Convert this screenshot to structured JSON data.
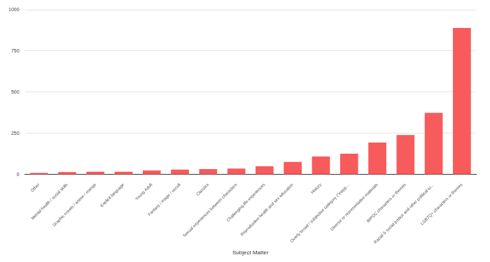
{
  "chart_data": {
    "type": "bar",
    "x_label": "Subject Matter",
    "categories": [
      "Other",
      "Mental health / social skills",
      "Graphic novels / anime / manga",
      "Explicit language",
      "Young Adult",
      "Fantasy / magic / occult",
      "Classics",
      "Sexual experiences between characters",
      "Challenging life experiences",
      "Reproductive health and sex education",
      "History",
      "Overly broad / subjective category (\"inapp…",
      "Diverse or representative materials",
      "BIPOC characters or themes",
      "Racial & social justice and other political to…",
      "LGBTQ+ characters or themes"
    ],
    "values": [
      10,
      15,
      18,
      18,
      25,
      30,
      33,
      37,
      50,
      77,
      110,
      127,
      195,
      240,
      375,
      890
    ],
    "color": "#f75b5b",
    "ylim": [
      0,
      1000
    ],
    "yticks": [
      0,
      250,
      500,
      750,
      1000
    ],
    "grid": true
  }
}
